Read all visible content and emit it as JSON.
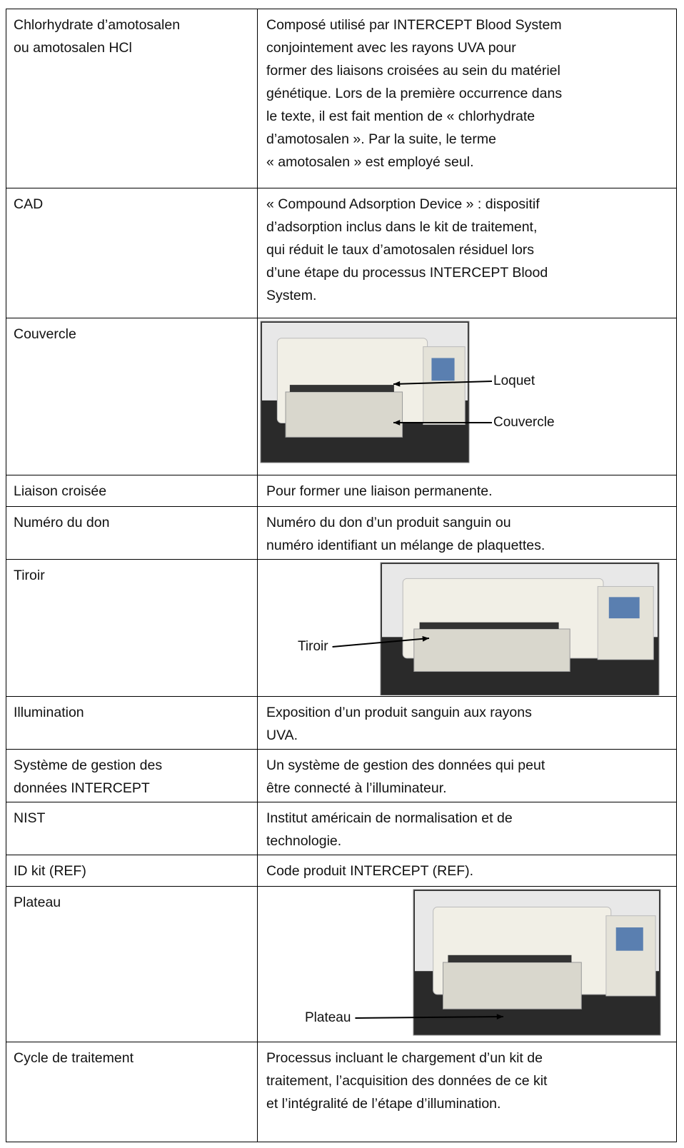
{
  "table": {
    "rows": [
      {
        "term": [
          "Chlorhydrate d’amotosalen",
          "ou amotosalen HCl"
        ],
        "definition": [
          "Composé utilisé par INTERCEPT Blood System",
          "conjointement avec les rayons UVA pour",
          "former des liaisons croisées au sein du matériel",
          "génétique. Lors de la première occurrence dans",
          "le texte, il est fait mention de « chlorhydrate",
          "d’amotosalen ». Par la suite, le terme",
          "« amotosalen » est employé seul."
        ]
      },
      {
        "term": [
          "CAD"
        ],
        "definition": [
          "« Compound Adsorption Device » : dispositif",
          "d’adsorption inclus dans le kit de traitement,",
          "qui réduit le taux d’amotosalen résiduel lors",
          "d’une étape du processus INTERCEPT Blood",
          "System."
        ]
      },
      {
        "term": [
          "Couvercle"
        ],
        "image_labels": [
          "Loquet",
          "Couvercle"
        ]
      },
      {
        "term": [
          "Liaison croisée"
        ],
        "definition": [
          "Pour former une liaison permanente."
        ]
      },
      {
        "term": [
          "Numéro du don"
        ],
        "definition": [
          "Numéro du don d’un produit sanguin ou",
          "numéro identifiant un mélange de plaquettes."
        ]
      },
      {
        "term": [
          "Tiroir"
        ],
        "image_labels": [
          "Tiroir"
        ]
      },
      {
        "term": [
          "Illumination"
        ],
        "definition": [
          "Exposition d’un produit sanguin aux rayons",
          "UVA."
        ]
      },
      {
        "term": [
          "Système de gestion des",
          "données INTERCEPT"
        ],
        "definition": [
          "Un système de gestion des données qui peut",
          "être connecté à l’illuminateur."
        ]
      },
      {
        "term": [
          "NIST"
        ],
        "definition": [
          "Institut américain de normalisation et de",
          "technologie."
        ]
      },
      {
        "term": [
          "ID kit (REF)"
        ],
        "definition": [
          "Code produit INTERCEPT (REF)."
        ]
      },
      {
        "term": [
          "Plateau"
        ],
        "image_labels": [
          "Plateau"
        ]
      },
      {
        "term": [
          "Cycle de traitement"
        ],
        "definition": [
          "Processus incluant le chargement d’un kit de",
          "traitement, l’acquisition des données de ce kit",
          "et l’intégralité de l’étape d’illumination."
        ]
      }
    ]
  }
}
